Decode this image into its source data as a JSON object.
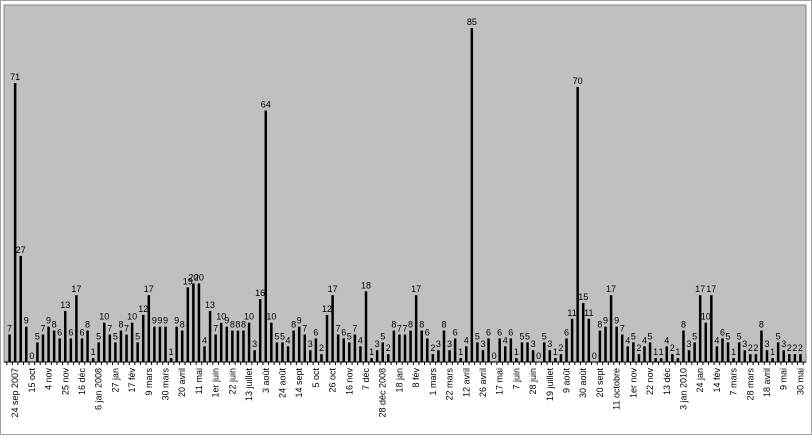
{
  "chart_data": {
    "type": "bar",
    "title": "",
    "xlabel": "",
    "ylabel": "",
    "ylim": [
      0,
      85
    ],
    "grid": false,
    "legend": "none",
    "colors": {
      "plot_background": "#c0c0c0",
      "bar": "#000000",
      "frame": "#808080"
    },
    "values": [
      7,
      71,
      27,
      9,
      0,
      5,
      7,
      9,
      8,
      6,
      13,
      6,
      17,
      6,
      8,
      1,
      5,
      10,
      7,
      5,
      8,
      7,
      10,
      5,
      12,
      17,
      9,
      9,
      9,
      1,
      9,
      8,
      19,
      20,
      20,
      4,
      13,
      7,
      10,
      9,
      8,
      8,
      8,
      10,
      3,
      16,
      64,
      10,
      5,
      5,
      4,
      8,
      9,
      7,
      3,
      6,
      2,
      12,
      17,
      7,
      6,
      5,
      7,
      4,
      18,
      1,
      3,
      5,
      2,
      8,
      7,
      7,
      8,
      17,
      8,
      6,
      2,
      3,
      8,
      3,
      6,
      1,
      4,
      85,
      5,
      3,
      6,
      0,
      6,
      4,
      6,
      1,
      5,
      5,
      3,
      0,
      5,
      3,
      1,
      2,
      6,
      11,
      70,
      15,
      11,
      0,
      8,
      9,
      17,
      9,
      7,
      4,
      5,
      2,
      4,
      5,
      1,
      1,
      4,
      2,
      1,
      8,
      3,
      5,
      17,
      10,
      17,
      4,
      6,
      5,
      1,
      5,
      3,
      2,
      2,
      8,
      3,
      1,
      5,
      3,
      2,
      2,
      2
    ],
    "x_tick_labels": [
      {
        "i": 1,
        "label": "24 sep 2007"
      },
      {
        "i": 4,
        "label": "15 oct"
      },
      {
        "i": 7,
        "label": "4 nov"
      },
      {
        "i": 10,
        "label": "25 nov"
      },
      {
        "i": 13,
        "label": "16 déc"
      },
      {
        "i": 16,
        "label": "6 jan 2008"
      },
      {
        "i": 19,
        "label": "27 jan"
      },
      {
        "i": 22,
        "label": "17 fév"
      },
      {
        "i": 25,
        "label": "9 mars"
      },
      {
        "i": 28,
        "label": "30 mars"
      },
      {
        "i": 31,
        "label": "20 avril"
      },
      {
        "i": 34,
        "label": "11 mai"
      },
      {
        "i": 37,
        "label": "1er juin"
      },
      {
        "i": 40,
        "label": "22 juin"
      },
      {
        "i": 43,
        "label": "13 juillet"
      },
      {
        "i": 46,
        "label": "3 août"
      },
      {
        "i": 49,
        "label": "24 août"
      },
      {
        "i": 52,
        "label": "14 sept"
      },
      {
        "i": 55,
        "label": "5 oct"
      },
      {
        "i": 58,
        "label": "26 oct"
      },
      {
        "i": 61,
        "label": "16 nov"
      },
      {
        "i": 64,
        "label": "7 déc"
      },
      {
        "i": 67,
        "label": "28 déc 2008"
      },
      {
        "i": 70,
        "label": "18 jan"
      },
      {
        "i": 73,
        "label": "8 fév"
      },
      {
        "i": 76,
        "label": "1 mars"
      },
      {
        "i": 79,
        "label": "22 mars"
      },
      {
        "i": 82,
        "label": "12 avril"
      },
      {
        "i": 85,
        "label": "26 avril"
      },
      {
        "i": 88,
        "label": "17 mai"
      },
      {
        "i": 91,
        "label": "7 juin"
      },
      {
        "i": 94,
        "label": "28 juin"
      },
      {
        "i": 97,
        "label": "19 juillet"
      },
      {
        "i": 100,
        "label": "9 août"
      },
      {
        "i": 103,
        "label": "30 août"
      },
      {
        "i": 106,
        "label": "20 sept"
      },
      {
        "i": 109,
        "label": "11 octobre"
      },
      {
        "i": 112,
        "label": "1er nov"
      },
      {
        "i": 115,
        "label": "22 nov"
      },
      {
        "i": 118,
        "label": "13 déc"
      },
      {
        "i": 121,
        "label": "3 jan 2010"
      },
      {
        "i": 124,
        "label": "24 jan"
      },
      {
        "i": 127,
        "label": "14 fév"
      },
      {
        "i": 130,
        "label": "7 mars"
      },
      {
        "i": 133,
        "label": "28 mars"
      },
      {
        "i": 136,
        "label": "18 avril"
      },
      {
        "i": 139,
        "label": "9 mai"
      },
      {
        "i": 142,
        "label": "30 mai"
      }
    ]
  }
}
